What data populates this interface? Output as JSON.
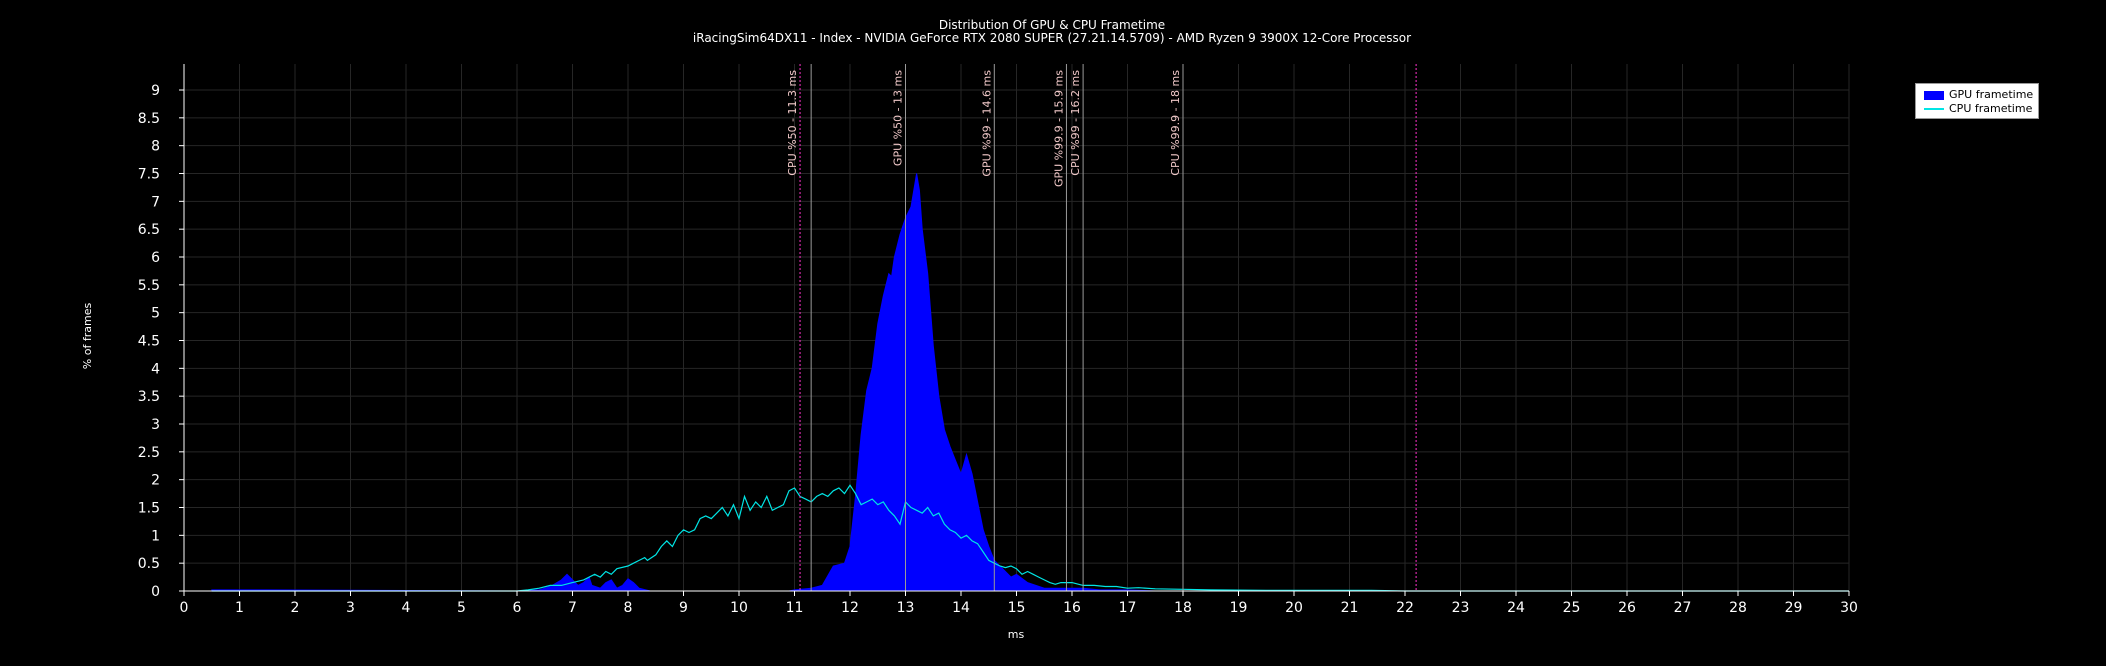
{
  "chart_data": {
    "type": "area",
    "title": "Distribution Of GPU & CPU Frametime",
    "subtitle": "iRacingSim64DX11 - Index - NVIDIA GeForce RTX 2080 SUPER (27.21.14.5709) - AMD Ryzen 9 3900X 12-Core Processor",
    "xlabel": "ms",
    "ylabel": "% of frames",
    "xlim": [
      0,
      30
    ],
    "ylim": [
      0,
      9.5
    ],
    "xticks": [
      "0",
      "1",
      "2",
      "3",
      "4",
      "5",
      "6",
      "7",
      "8",
      "9",
      "10",
      "11",
      "12",
      "13",
      "14",
      "15",
      "16",
      "17",
      "18",
      "19",
      "20",
      "21",
      "22",
      "23",
      "24",
      "25",
      "26",
      "27",
      "28",
      "29",
      "30"
    ],
    "yticks": [
      "0",
      "0.5",
      "1",
      "1.5",
      "2",
      "2.5",
      "3",
      "3.5",
      "4",
      "4.5",
      "5",
      "5.5",
      "6",
      "6.5",
      "7",
      "7.5",
      "8",
      "8.5",
      "9"
    ],
    "grid": true,
    "legend_position": "top-right",
    "series": [
      {
        "name": "GPU frametime",
        "color": "#0000ff",
        "style": "filled",
        "points": [
          [
            0.5,
            0.02
          ],
          [
            1.5,
            0.02
          ],
          [
            6.0,
            0.0
          ],
          [
            6.4,
            0.02
          ],
          [
            6.6,
            0.08
          ],
          [
            6.8,
            0.2
          ],
          [
            6.9,
            0.3
          ],
          [
            7.0,
            0.2
          ],
          [
            7.1,
            0.1
          ],
          [
            7.2,
            0.15
          ],
          [
            7.3,
            0.25
          ],
          [
            7.35,
            0.1
          ],
          [
            7.5,
            0.05
          ],
          [
            7.6,
            0.15
          ],
          [
            7.7,
            0.2
          ],
          [
            7.8,
            0.05
          ],
          [
            7.9,
            0.1
          ],
          [
            8.0,
            0.22
          ],
          [
            8.1,
            0.15
          ],
          [
            8.2,
            0.05
          ],
          [
            8.4,
            0.0
          ],
          [
            10.9,
            0.0
          ],
          [
            11.0,
            0.02
          ],
          [
            11.3,
            0.05
          ],
          [
            11.5,
            0.1
          ],
          [
            11.7,
            0.45
          ],
          [
            11.9,
            0.5
          ],
          [
            12.0,
            0.8
          ],
          [
            12.1,
            1.7
          ],
          [
            12.2,
            2.8
          ],
          [
            12.3,
            3.6
          ],
          [
            12.4,
            4.0
          ],
          [
            12.5,
            4.8
          ],
          [
            12.6,
            5.3
          ],
          [
            12.7,
            5.7
          ],
          [
            12.75,
            5.65
          ],
          [
            12.8,
            6.0
          ],
          [
            12.9,
            6.4
          ],
          [
            13.0,
            6.7
          ],
          [
            13.1,
            6.9
          ],
          [
            13.15,
            7.2
          ],
          [
            13.2,
            7.5
          ],
          [
            13.25,
            7.2
          ],
          [
            13.3,
            6.5
          ],
          [
            13.4,
            5.7
          ],
          [
            13.5,
            4.4
          ],
          [
            13.6,
            3.5
          ],
          [
            13.7,
            2.9
          ],
          [
            13.8,
            2.6
          ],
          [
            13.9,
            2.35
          ],
          [
            14.0,
            2.1
          ],
          [
            14.1,
            2.45
          ],
          [
            14.2,
            2.1
          ],
          [
            14.3,
            1.6
          ],
          [
            14.4,
            1.1
          ],
          [
            14.5,
            0.8
          ],
          [
            14.6,
            0.55
          ],
          [
            14.7,
            0.45
          ],
          [
            14.8,
            0.35
          ],
          [
            14.9,
            0.25
          ],
          [
            15.0,
            0.3
          ],
          [
            15.2,
            0.15
          ],
          [
            15.5,
            0.05
          ],
          [
            16.0,
            0.05
          ],
          [
            16.2,
            0.05
          ],
          [
            16.5,
            0.02
          ],
          [
            17.0,
            0.02
          ],
          [
            17.5,
            0.0
          ],
          [
            18.0,
            0.0
          ]
        ]
      },
      {
        "name": "CPU frametime",
        "color": "#00e5e5",
        "style": "line",
        "points": [
          [
            0.5,
            0.0
          ],
          [
            6.0,
            0.0
          ],
          [
            6.2,
            0.02
          ],
          [
            6.4,
            0.05
          ],
          [
            6.6,
            0.1
          ],
          [
            6.8,
            0.1
          ],
          [
            7.0,
            0.15
          ],
          [
            7.2,
            0.2
          ],
          [
            7.4,
            0.3
          ],
          [
            7.5,
            0.25
          ],
          [
            7.6,
            0.35
          ],
          [
            7.7,
            0.3
          ],
          [
            7.8,
            0.4
          ],
          [
            8.0,
            0.45
          ],
          [
            8.1,
            0.5
          ],
          [
            8.2,
            0.55
          ],
          [
            8.3,
            0.6
          ],
          [
            8.35,
            0.55
          ],
          [
            8.5,
            0.65
          ],
          [
            8.6,
            0.8
          ],
          [
            8.7,
            0.9
          ],
          [
            8.8,
            0.8
          ],
          [
            8.9,
            1.0
          ],
          [
            9.0,
            1.1
          ],
          [
            9.1,
            1.05
          ],
          [
            9.2,
            1.1
          ],
          [
            9.3,
            1.3
          ],
          [
            9.4,
            1.35
          ],
          [
            9.5,
            1.3
          ],
          [
            9.6,
            1.4
          ],
          [
            9.7,
            1.5
          ],
          [
            9.8,
            1.35
          ],
          [
            9.9,
            1.55
          ],
          [
            10.0,
            1.3
          ],
          [
            10.1,
            1.7
          ],
          [
            10.2,
            1.45
          ],
          [
            10.3,
            1.6
          ],
          [
            10.4,
            1.5
          ],
          [
            10.5,
            1.7
          ],
          [
            10.6,
            1.45
          ],
          [
            10.7,
            1.5
          ],
          [
            10.8,
            1.55
          ],
          [
            10.9,
            1.8
          ],
          [
            11.0,
            1.85
          ],
          [
            11.1,
            1.7
          ],
          [
            11.2,
            1.65
          ],
          [
            11.3,
            1.6
          ],
          [
            11.4,
            1.7
          ],
          [
            11.5,
            1.75
          ],
          [
            11.6,
            1.7
          ],
          [
            11.7,
            1.8
          ],
          [
            11.8,
            1.85
          ],
          [
            11.9,
            1.75
          ],
          [
            12.0,
            1.9
          ],
          [
            12.1,
            1.75
          ],
          [
            12.2,
            1.55
          ],
          [
            12.3,
            1.6
          ],
          [
            12.4,
            1.65
          ],
          [
            12.5,
            1.55
          ],
          [
            12.6,
            1.6
          ],
          [
            12.7,
            1.45
          ],
          [
            12.8,
            1.35
          ],
          [
            12.9,
            1.2
          ],
          [
            13.0,
            1.6
          ],
          [
            13.1,
            1.5
          ],
          [
            13.2,
            1.45
          ],
          [
            13.3,
            1.4
          ],
          [
            13.4,
            1.5
          ],
          [
            13.5,
            1.35
          ],
          [
            13.6,
            1.4
          ],
          [
            13.7,
            1.2
          ],
          [
            13.8,
            1.1
          ],
          [
            13.9,
            1.05
          ],
          [
            14.0,
            0.95
          ],
          [
            14.1,
            1.0
          ],
          [
            14.2,
            0.9
          ],
          [
            14.3,
            0.85
          ],
          [
            14.4,
            0.7
          ],
          [
            14.5,
            0.55
          ],
          [
            14.6,
            0.5
          ],
          [
            14.7,
            0.45
          ],
          [
            14.8,
            0.42
          ],
          [
            14.9,
            0.45
          ],
          [
            15.0,
            0.4
          ],
          [
            15.1,
            0.3
          ],
          [
            15.2,
            0.35
          ],
          [
            15.3,
            0.3
          ],
          [
            15.4,
            0.25
          ],
          [
            15.5,
            0.2
          ],
          [
            15.6,
            0.15
          ],
          [
            15.7,
            0.12
          ],
          [
            15.8,
            0.15
          ],
          [
            16.0,
            0.15
          ],
          [
            16.2,
            0.1
          ],
          [
            16.4,
            0.1
          ],
          [
            16.6,
            0.08
          ],
          [
            16.8,
            0.08
          ],
          [
            17.0,
            0.05
          ],
          [
            17.2,
            0.06
          ],
          [
            17.5,
            0.04
          ],
          [
            18.0,
            0.03
          ],
          [
            18.5,
            0.02
          ],
          [
            19.5,
            0.01
          ],
          [
            21.4,
            0.01
          ],
          [
            22.0,
            0.0
          ],
          [
            30.0,
            0.0
          ]
        ]
      }
    ],
    "markers": [
      {
        "x": 11.1,
        "label": "CPU %50 - 11.3 ms",
        "color": "#ff33cc",
        "dash": true
      },
      {
        "x": 11.3,
        "label": "",
        "color": "#9a9a9a",
        "dash": false
      },
      {
        "x": 13.0,
        "label": "GPU %50 - 13 ms",
        "color": "#9a9a9a",
        "dash": false
      },
      {
        "x": 14.6,
        "label": "GPU %99 - 14.6 ms",
        "color": "#9a9a9a",
        "dash": false
      },
      {
        "x": 15.9,
        "label": "GPU %99.9 - 15.9 ms",
        "color": "#9a9a9a",
        "dash": false
      },
      {
        "x": 16.2,
        "label": "CPU %99 - 16.2 ms",
        "color": "#9a9a9a",
        "dash": false
      },
      {
        "x": 18.0,
        "label": "CPU %99.9 - 18 ms",
        "color": "#9a9a9a",
        "dash": false
      },
      {
        "x": 22.2,
        "label": "",
        "color": "#ff33cc",
        "dash": true
      }
    ]
  }
}
